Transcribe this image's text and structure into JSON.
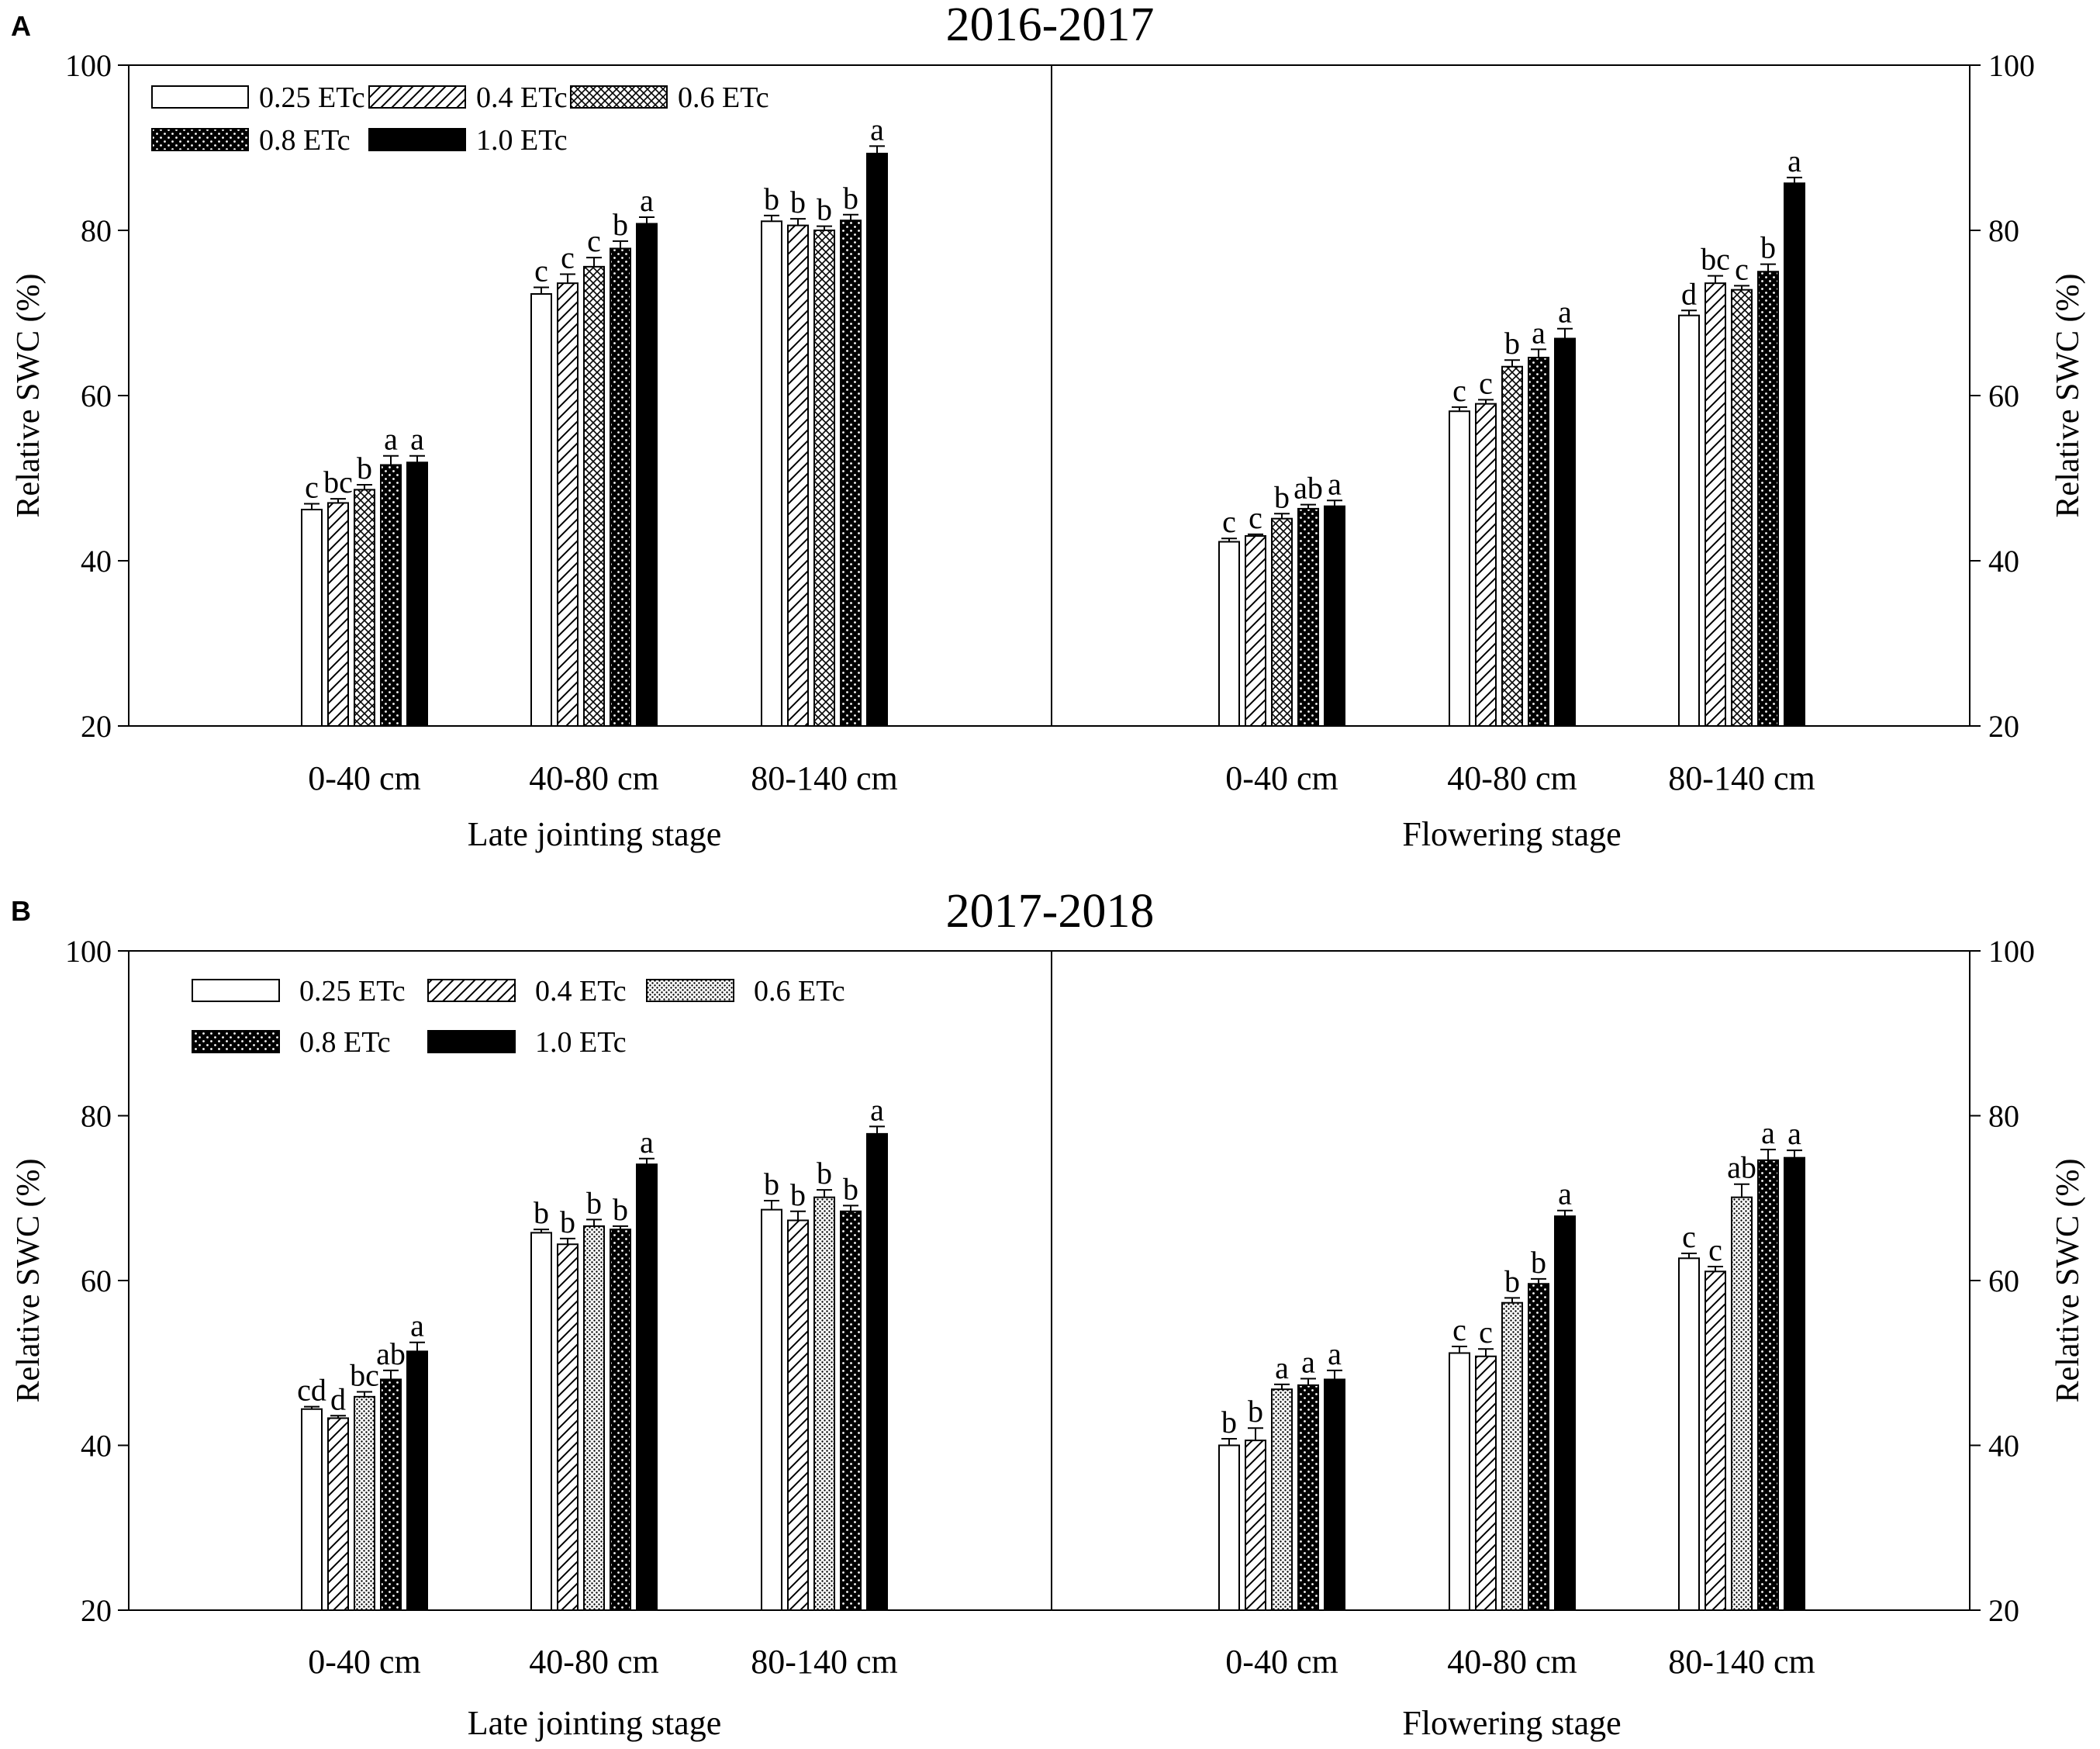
{
  "figure": {
    "panels": [
      {
        "letter": "A",
        "title": "2016-2017",
        "legend": [
          "0.25 ETc",
          "0.4 ETc",
          "0.6 ETc",
          "0.8 ETc",
          "1.0 ETc"
        ]
      },
      {
        "letter": "B",
        "title": "2017-2018",
        "legend": [
          "0.25 ETc",
          "0.4 ETc",
          "0.6 ETc",
          "0.8 ETc",
          "1.0 ETc"
        ]
      }
    ]
  },
  "colors": {
    "axis": "#000000",
    "bar_fill": "#000000",
    "background": "#ffffff"
  },
  "chart_data": [
    {
      "type": "bar",
      "title": "2016-2017",
      "panel_label": "A",
      "ylabel": "Relative SWC (%)",
      "ylabel_right": "Relative SWC (%)",
      "ylim": [
        20,
        100
      ],
      "yticks": [
        20,
        40,
        60,
        80,
        100
      ],
      "grid": false,
      "legend_placement": "top-left",
      "series_names": [
        "0.25 ETc",
        "0.4 ETc",
        "0.6 ETc",
        "0.8 ETc",
        "1.0 ETc"
      ],
      "series_patterns": [
        "open",
        "hatch",
        "crosshatch",
        "dots",
        "solid"
      ],
      "stages": [
        {
          "name": "Late jointing stage",
          "groups": [
            {
              "depth": "0-40 cm",
              "values": [
                46.2,
                47.0,
                48.6,
                51.6,
                51.9
              ],
              "errors": [
                0.7,
                0.5,
                0.6,
                1.1,
                0.8
              ],
              "letters": [
                "c",
                "bc",
                "b",
                "a",
                "a"
              ]
            },
            {
              "depth": "40-80 cm",
              "values": [
                72.3,
                73.6,
                75.6,
                77.8,
                80.8
              ],
              "errors": [
                0.8,
                1.1,
                1.1,
                0.9,
                0.8
              ],
              "letters": [
                "c",
                "c",
                "c",
                "b",
                "a"
              ]
            },
            {
              "depth": "80-140 cm",
              "values": [
                81.1,
                80.6,
                80.0,
                81.2,
                89.3
              ],
              "errors": [
                0.7,
                0.8,
                0.5,
                0.7,
                0.9
              ],
              "letters": [
                "b",
                "b",
                "b",
                "b",
                "a"
              ]
            }
          ]
        },
        {
          "name": "Flowering stage",
          "groups": [
            {
              "depth": "0-40 cm",
              "values": [
                42.3,
                43.0,
                45.1,
                46.3,
                46.6
              ],
              "errors": [
                0.4,
                0.2,
                0.6,
                0.5,
                0.7
              ],
              "letters": [
                "c",
                "c",
                "b",
                "ab",
                "a"
              ]
            },
            {
              "depth": "40-80 cm",
              "values": [
                58.1,
                59.0,
                63.5,
                64.6,
                66.9
              ],
              "errors": [
                0.5,
                0.5,
                0.8,
                1.0,
                1.2
              ],
              "letters": [
                "c",
                "c",
                "b",
                "a",
                "a"
              ]
            },
            {
              "depth": "80-140 cm",
              "values": [
                69.7,
                73.6,
                72.8,
                75.0,
                85.7
              ],
              "errors": [
                0.6,
                0.9,
                0.5,
                0.9,
                0.7
              ],
              "letters": [
                "d",
                "bc",
                "c",
                "b",
                "a"
              ]
            }
          ]
        }
      ]
    },
    {
      "type": "bar",
      "title": "2017-2018",
      "panel_label": "B",
      "ylabel": "Relative SWC (%)",
      "ylabel_right": "Relative SWC (%)",
      "ylim": [
        20,
        100
      ],
      "yticks": [
        20,
        40,
        60,
        80,
        100
      ],
      "grid": false,
      "legend_placement": "top-left",
      "series_names": [
        "0.25 ETc",
        "0.4 ETc",
        "0.6 ETc",
        "0.8 ETc",
        "1.0 ETc"
      ],
      "series_patterns": [
        "open",
        "hatch",
        "fine-dots",
        "dots",
        "solid"
      ],
      "stages": [
        {
          "name": "Late jointing stage",
          "groups": [
            {
              "depth": "0-40 cm",
              "values": [
                44.4,
                43.3,
                45.9,
                48.0,
                51.4
              ],
              "errors": [
                0.3,
                0.3,
                0.6,
                1.1,
                1.1
              ],
              "letters": [
                "cd",
                "d",
                "bc",
                "ab",
                "a"
              ]
            },
            {
              "depth": "40-80 cm",
              "values": [
                65.8,
                64.4,
                66.6,
                66.2,
                74.1
              ],
              "errors": [
                0.4,
                0.7,
                0.8,
                0.4,
                0.7
              ],
              "letters": [
                "b",
                "b",
                "b",
                "b",
                "a"
              ]
            },
            {
              "depth": "80-140 cm",
              "values": [
                68.6,
                67.3,
                70.1,
                68.4,
                77.8
              ],
              "errors": [
                1.1,
                1.1,
                0.9,
                0.7,
                0.9
              ],
              "letters": [
                "b",
                "b",
                "b",
                "b",
                "a"
              ]
            }
          ]
        },
        {
          "name": "Flowering stage",
          "groups": [
            {
              "depth": "0-40 cm",
              "values": [
                40.0,
                40.6,
                46.8,
                47.3,
                48.0
              ],
              "errors": [
                0.8,
                1.5,
                0.6,
                0.8,
                1.1
              ],
              "letters": [
                "b",
                "b",
                "a",
                "a",
                "a"
              ]
            },
            {
              "depth": "40-80 cm",
              "values": [
                51.2,
                50.8,
                57.3,
                59.6,
                67.8
              ],
              "errors": [
                0.8,
                0.9,
                0.6,
                0.6,
                0.7
              ],
              "letters": [
                "c",
                "c",
                "b",
                "b",
                "a"
              ]
            },
            {
              "depth": "80-140 cm",
              "values": [
                62.7,
                61.1,
                70.1,
                74.6,
                74.9
              ],
              "errors": [
                0.6,
                0.6,
                1.6,
                1.3,
                0.9
              ],
              "letters": [
                "c",
                "c",
                "ab",
                "a",
                "a"
              ]
            }
          ]
        }
      ]
    }
  ]
}
